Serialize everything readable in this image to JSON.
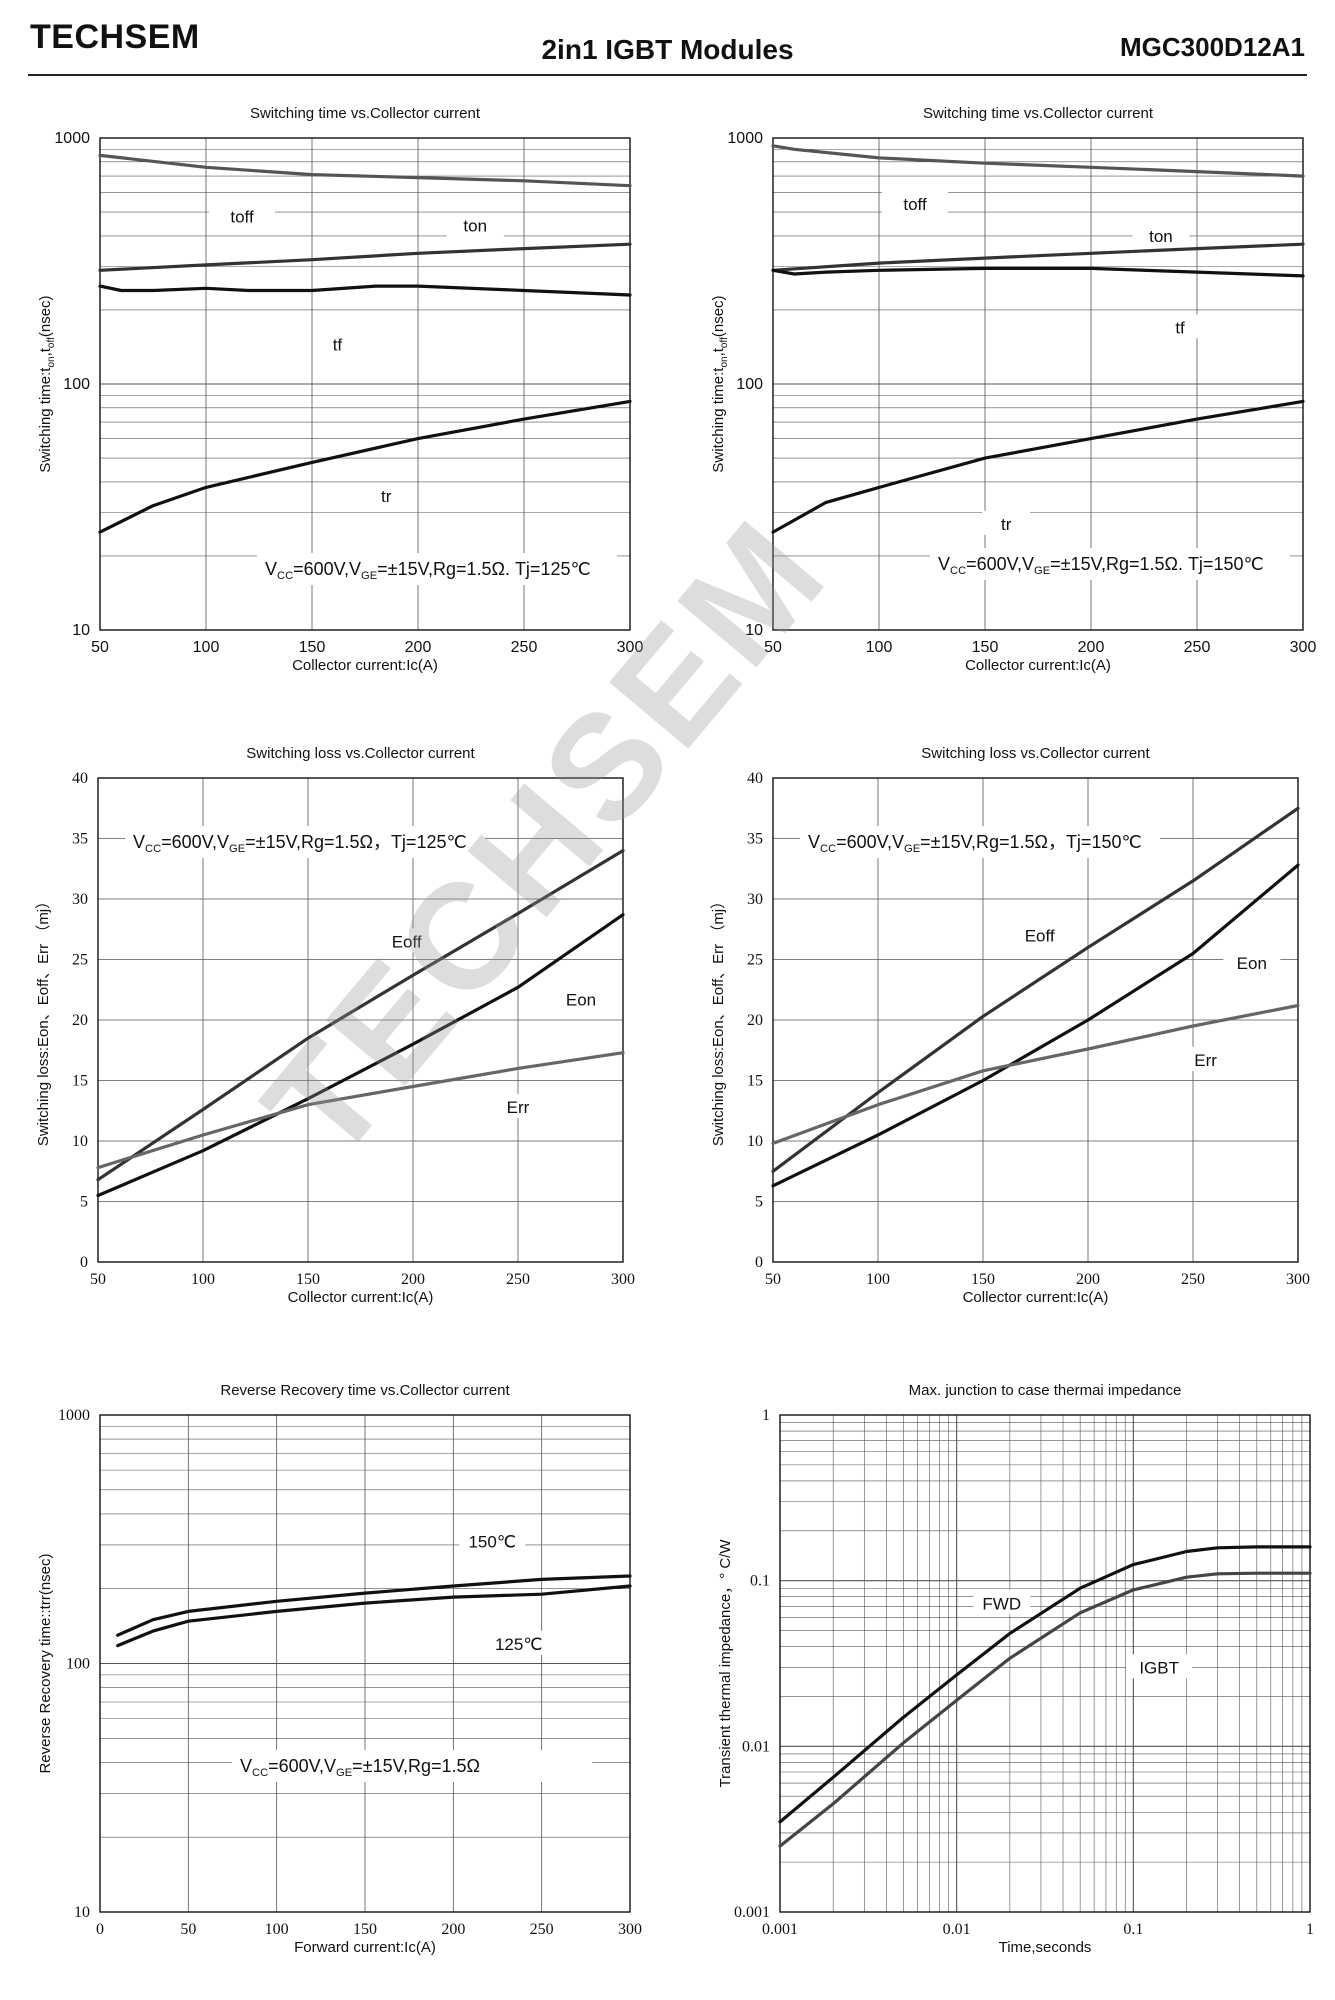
{
  "header": {
    "brand": "TECHSEM",
    "title": "2in1  IGBT  Modules",
    "part_number": "MGC300D12A1"
  },
  "watermark": "TECHSEM",
  "chart_data": [
    {
      "id": "c1",
      "type": "line",
      "title": "Switching time vs.Collector current",
      "xlabel": "Collector current:Ic(A)",
      "ylabel": "Switching time:t",
      "ylabel_sub": "on",
      "ylabel_mid": ",t",
      "ylabel_sub2": "off",
      "ylabel_end": "(nsec)",
      "x_scale": "linear",
      "y_scale": "log",
      "xlim": [
        50,
        300
      ],
      "ylim": [
        10,
        1000
      ],
      "xticks": [
        50,
        100,
        150,
        200,
        250,
        300
      ],
      "yticks": [
        10,
        100,
        1000
      ],
      "grid": true,
      "annotation": {
        "parts": [
          "V",
          "CC",
          "=600V,V",
          "GE",
          "=±15V,Rg=1.5Ω. Tj=125℃"
        ]
      },
      "series": [
        {
          "name": "toff",
          "color": "#555555",
          "x": [
            50,
            100,
            150,
            200,
            250,
            300
          ],
          "values": [
            850,
            760,
            710,
            690,
            670,
            640
          ]
        },
        {
          "name": "ton",
          "color": "#333333",
          "x": [
            50,
            100,
            150,
            200,
            250,
            300
          ],
          "values": [
            290,
            305,
            320,
            340,
            355,
            370
          ]
        },
        {
          "name": "tf",
          "color": "#111111",
          "x": [
            50,
            60,
            75,
            100,
            120,
            150,
            180,
            200,
            250,
            300
          ],
          "values": [
            250,
            240,
            240,
            245,
            240,
            240,
            250,
            250,
            240,
            230
          ]
        },
        {
          "name": "tr",
          "color": "#111111",
          "x": [
            50,
            75,
            100,
            150,
            200,
            250,
            300
          ],
          "values": [
            25,
            32,
            38,
            48,
            60,
            72,
            85
          ]
        }
      ],
      "labels": [
        {
          "text": "toff",
          "x": 117,
          "y": 480
        },
        {
          "text": "ton",
          "x": 227,
          "y": 440
        },
        {
          "text": "tf",
          "x": 162,
          "y": 145
        },
        {
          "text": "tr",
          "x": 185,
          "y": 35
        }
      ]
    },
    {
      "id": "c2",
      "type": "line",
      "title": "Switching time vs.Collector current",
      "xlabel": "Collector current:Ic(A)",
      "ylabel": "Switching time:t",
      "ylabel_sub": "on",
      "ylabel_mid": ",t",
      "ylabel_sub2": "off",
      "ylabel_end": "(nsec)",
      "x_scale": "linear",
      "y_scale": "log",
      "xlim": [
        50,
        300
      ],
      "ylim": [
        10,
        1000
      ],
      "xticks": [
        50,
        100,
        150,
        200,
        250,
        300
      ],
      "yticks": [
        10,
        100,
        1000
      ],
      "grid": true,
      "annotation": {
        "parts": [
          "V",
          "CC",
          "=600V,V",
          "GE",
          "=±15V,Rg=1.5Ω. Tj=150℃"
        ]
      },
      "series": [
        {
          "name": "toff",
          "color": "#555555",
          "x": [
            50,
            60,
            100,
            150,
            200,
            250,
            300
          ],
          "values": [
            930,
            900,
            830,
            790,
            760,
            730,
            700
          ]
        },
        {
          "name": "ton",
          "color": "#333333",
          "x": [
            50,
            100,
            150,
            200,
            250,
            300
          ],
          "values": [
            290,
            310,
            325,
            340,
            355,
            370
          ]
        },
        {
          "name": "tf",
          "color": "#111111",
          "x": [
            50,
            60,
            75,
            100,
            150,
            200,
            250,
            300
          ],
          "values": [
            290,
            280,
            285,
            290,
            295,
            295,
            285,
            275
          ]
        },
        {
          "name": "tr",
          "color": "#111111",
          "x": [
            50,
            75,
            100,
            150,
            200,
            250,
            300
          ],
          "values": [
            25,
            33,
            38,
            50,
            60,
            72,
            85
          ]
        }
      ],
      "labels": [
        {
          "text": "toff",
          "x": 117,
          "y": 540
        },
        {
          "text": "ton",
          "x": 233,
          "y": 400
        },
        {
          "text": "tf",
          "x": 242,
          "y": 170
        },
        {
          "text": "tr",
          "x": 160,
          "y": 27
        }
      ]
    },
    {
      "id": "c3",
      "type": "line",
      "title": "Switching loss vs.Collector current",
      "xlabel": "Collector current:Ic(A)",
      "ylabel": "Switching loss:Eon、Eoff、Err （mj）",
      "x_scale": "linear",
      "y_scale": "linear",
      "xlim": [
        50,
        300
      ],
      "ylim": [
        0,
        40
      ],
      "xticks": [
        50,
        100,
        150,
        200,
        250,
        300
      ],
      "yticks": [
        0,
        5,
        10,
        15,
        20,
        25,
        30,
        35,
        40
      ],
      "grid": true,
      "annotation": {
        "parts": [
          "V",
          "CC",
          "=600V,V",
          "GE",
          "=±15V,Rg=1.5Ω，Tj=125℃"
        ]
      },
      "series": [
        {
          "name": "Eoff",
          "color": "#333333",
          "x": [
            50,
            100,
            150,
            200,
            250,
            300
          ],
          "values": [
            6.8,
            12.6,
            18.5,
            23.7,
            28.8,
            34
          ]
        },
        {
          "name": "Eon",
          "color": "#111111",
          "x": [
            50,
            100,
            150,
            200,
            250,
            300
          ],
          "values": [
            5.5,
            9.2,
            13.5,
            18.0,
            22.7,
            28.7
          ]
        },
        {
          "name": "Err",
          "color": "#666666",
          "x": [
            50,
            100,
            150,
            200,
            250,
            300
          ],
          "values": [
            7.8,
            10.5,
            13.0,
            14.5,
            16.0,
            17.3
          ]
        }
      ],
      "labels": [
        {
          "text": "Eoff",
          "x": 197,
          "y": 26.5
        },
        {
          "text": "Eon",
          "x": 280,
          "y": 21.7
        },
        {
          "text": "Err",
          "x": 250,
          "y": 12.8
        }
      ]
    },
    {
      "id": "c4",
      "type": "line",
      "title": "Switching loss vs.Collector current",
      "xlabel": "Collector current:Ic(A)",
      "ylabel": "Switching loss:Eon、Eoff、Err （mj）",
      "x_scale": "linear",
      "y_scale": "linear",
      "xlim": [
        50,
        300
      ],
      "ylim": [
        0,
        40
      ],
      "xticks": [
        50,
        100,
        150,
        200,
        250,
        300
      ],
      "yticks": [
        0,
        5,
        10,
        15,
        20,
        25,
        30,
        35,
        40
      ],
      "grid": true,
      "annotation": {
        "parts": [
          "V",
          "CC",
          "=600V,V",
          "GE",
          "=±15V,Rg=1.5Ω，Tj=150℃"
        ]
      },
      "series": [
        {
          "name": "Eoff",
          "color": "#333333",
          "x": [
            50,
            100,
            150,
            200,
            250,
            300
          ],
          "values": [
            7.5,
            14.0,
            20.3,
            26.0,
            31.5,
            37.5
          ]
        },
        {
          "name": "Eon",
          "color": "#111111",
          "x": [
            50,
            100,
            150,
            200,
            250,
            300
          ],
          "values": [
            6.3,
            10.5,
            15.0,
            20.0,
            25.5,
            32.8
          ]
        },
        {
          "name": "Err",
          "color": "#666666",
          "x": [
            50,
            100,
            150,
            200,
            250,
            300
          ],
          "values": [
            9.8,
            13.0,
            15.8,
            17.6,
            19.5,
            21.2
          ]
        }
      ],
      "labels": [
        {
          "text": "Eoff",
          "x": 177,
          "y": 27.0
        },
        {
          "text": "Eon",
          "x": 278,
          "y": 24.7
        },
        {
          "text": "Err",
          "x": 256,
          "y": 16.7
        }
      ]
    },
    {
      "id": "c5",
      "type": "line",
      "title": "Reverse Recovery time vs.Collector current",
      "xlabel": "Forward current:Ic(A)",
      "ylabel": "Reverse Recovery time::trr(nsec)",
      "x_scale": "linear",
      "y_scale": "log",
      "xlim": [
        0,
        300
      ],
      "ylim": [
        10,
        1000
      ],
      "xticks": [
        0,
        50,
        100,
        150,
        200,
        250,
        300
      ],
      "yticks": [
        10,
        100,
        1000
      ],
      "grid": true,
      "annotation": {
        "parts": [
          "V",
          "CC",
          "=600V,V",
          "GE",
          "=±15V,Rg=1.5Ω"
        ]
      },
      "series": [
        {
          "name": "150℃",
          "color": "#111111",
          "x": [
            10,
            30,
            50,
            100,
            150,
            200,
            250,
            300
          ],
          "values": [
            130,
            150,
            162,
            178,
            192,
            205,
            218,
            225
          ]
        },
        {
          "name": "125℃",
          "color": "#111111",
          "x": [
            10,
            30,
            50,
            100,
            150,
            200,
            250,
            300
          ],
          "values": [
            118,
            135,
            148,
            162,
            175,
            185,
            190,
            205
          ]
        }
      ],
      "labels": [
        {
          "text": "150℃",
          "x": 222,
          "y": 310
        },
        {
          "text": "125℃",
          "x": 237,
          "y": 120
        }
      ]
    },
    {
      "id": "c6",
      "type": "line",
      "title": "Max. junction to case thermai impedance",
      "xlabel": "Time,seconds",
      "ylabel": "Transient thermal impedance，° C/W",
      "x_scale": "log",
      "y_scale": "log",
      "xlim": [
        0.001,
        1
      ],
      "ylim": [
        0.001,
        1
      ],
      "xticks": [
        0.001,
        0.01,
        0.1,
        1
      ],
      "xtick_labels": [
        "0.001",
        "0.01",
        "0.1",
        "1"
      ],
      "yticks": [
        0.001,
        0.01,
        0.1,
        1
      ],
      "ytick_labels": [
        "0.001",
        "0.01",
        "0.1",
        "1"
      ],
      "grid": true,
      "series": [
        {
          "name": "FWD",
          "color": "#111111",
          "x": [
            0.001,
            0.002,
            0.005,
            0.01,
            0.02,
            0.05,
            0.1,
            0.2,
            0.3,
            0.5,
            1
          ],
          "values": [
            0.0035,
            0.0065,
            0.015,
            0.027,
            0.048,
            0.09,
            0.125,
            0.15,
            0.158,
            0.16,
            0.16
          ]
        },
        {
          "name": "IGBT",
          "color": "#444444",
          "x": [
            0.001,
            0.002,
            0.005,
            0.01,
            0.02,
            0.05,
            0.1,
            0.2,
            0.3,
            0.5,
            1
          ],
          "values": [
            0.0025,
            0.0045,
            0.0105,
            0.019,
            0.034,
            0.064,
            0.088,
            0.105,
            0.11,
            0.111,
            0.111
          ]
        }
      ],
      "labels": [
        {
          "text": "FWD",
          "x": 0.018,
          "y": 0.073
        },
        {
          "text": "IGBT",
          "x": 0.14,
          "y": 0.03
        }
      ]
    }
  ]
}
